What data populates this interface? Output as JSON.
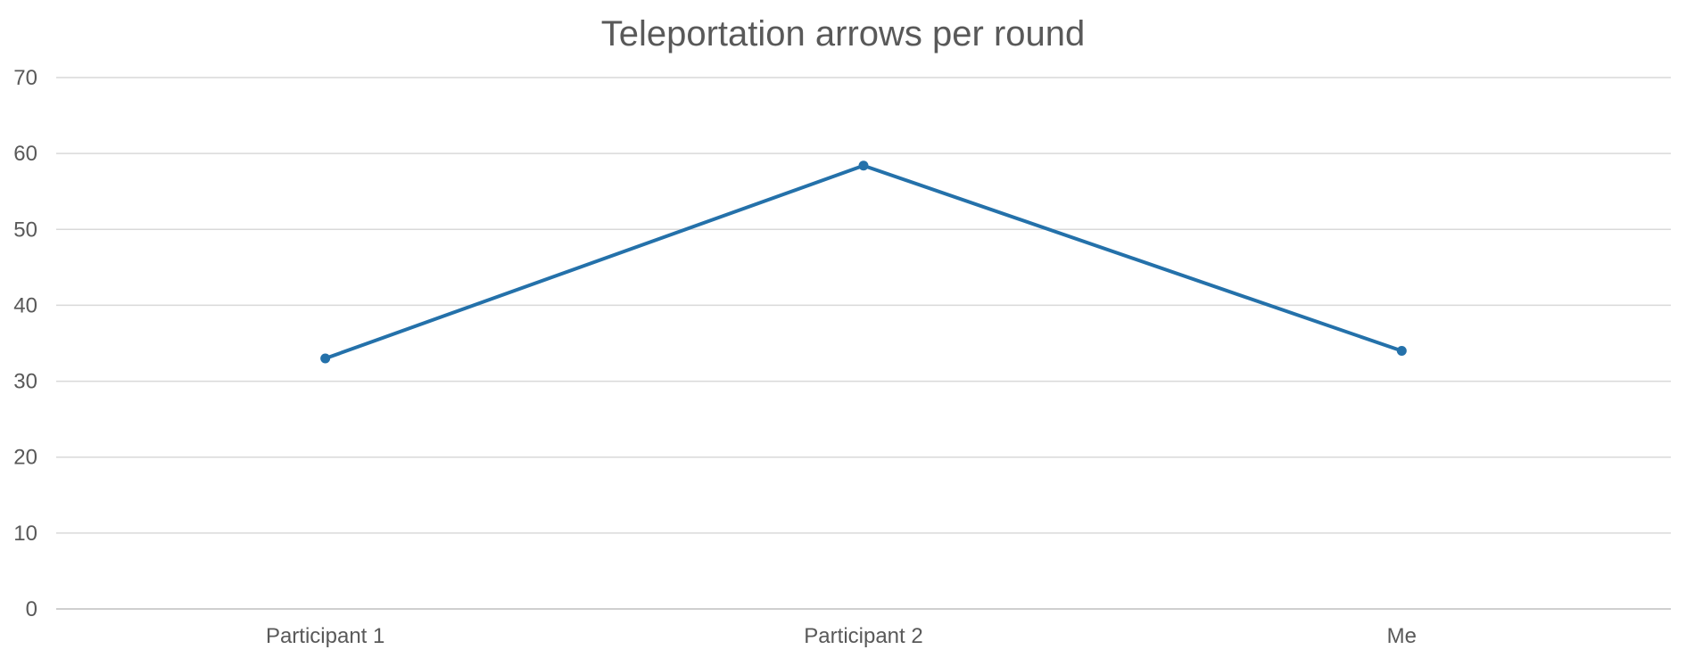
{
  "chart_data": {
    "type": "line",
    "title": "Teleportation arrows per round",
    "xlabel": "",
    "ylabel": "",
    "categories": [
      "Participant 1",
      "Participant 2",
      "Me"
    ],
    "series": [
      {
        "values": [
          33,
          58.4,
          34
        ],
        "color": "#2471aa"
      }
    ],
    "ylim": [
      0,
      70
    ],
    "yticks": [
      0,
      10,
      20,
      30,
      40,
      50,
      60,
      70
    ],
    "grid": true,
    "legend": "none",
    "markers": true
  }
}
